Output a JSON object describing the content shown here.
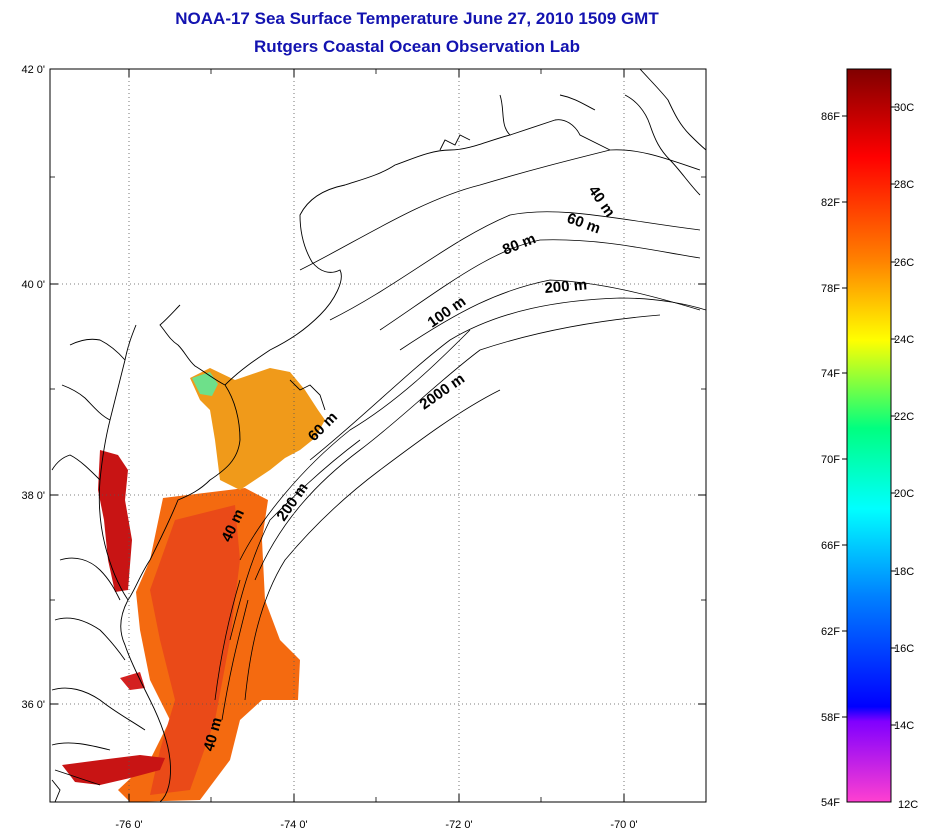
{
  "header": {
    "title_line1": "NOAA-17 Sea Surface Temperature June 27, 2010 1509 GMT",
    "title_line2": "Rutgers Coastal Ocean Observation Lab"
  },
  "map": {
    "lon_ticks": [
      "-76 0'",
      "-74 0'",
      "-72 0'",
      "-70 0'"
    ],
    "lat_ticks": [
      "42 0'",
      "40 0'",
      "38 0'",
      "36 0'"
    ],
    "contour_labels": [
      "40 m",
      "60 m",
      "80 m",
      "200 m",
      "100 m",
      "2000 m",
      "60 m",
      "200 m",
      "40 m",
      "40 m"
    ],
    "coastline_color": "#000000",
    "grid": "dotted"
  },
  "colorbar": {
    "fahrenheit_labels": [
      "86F",
      "82F",
      "78F",
      "74F",
      "70F",
      "66F",
      "62F",
      "58F",
      "54F"
    ],
    "celsius_labels": [
      "30C",
      "28C",
      "26C",
      "24C",
      "22C",
      "20C",
      "18C",
      "16C",
      "14C",
      "12C"
    ],
    "colors": [
      "#800000",
      "#ff0000",
      "#ff8000",
      "#ffff00",
      "#00ff80",
      "#00ffff",
      "#0080ff",
      "#0000ff",
      "#8000ff",
      "#ff40c0"
    ]
  }
}
